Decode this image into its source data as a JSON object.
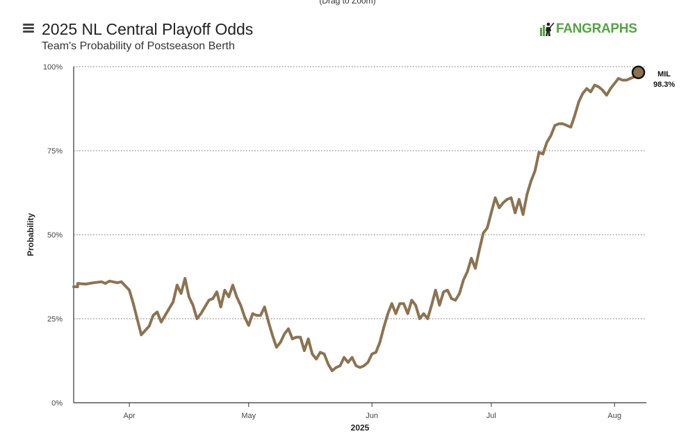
{
  "zoom_hint": "(Drag to Zoom)",
  "header": {
    "title": "2025 NL Central Playoff Odds",
    "subtitle": "Team's Probability of Postseason Berth",
    "logo_text": "FANGRAPHS"
  },
  "colors": {
    "series": "#8c7350",
    "marker_fill": "#8c7350",
    "gridline": "#666666",
    "logo": "#51a540"
  },
  "chart_data": {
    "type": "line",
    "title": "2025 NL Central Playoff Odds",
    "subtitle": "Team's Probability of Postseason Berth",
    "xlabel": "2025",
    "ylabel": "Probability",
    "ylim": [
      0,
      100
    ],
    "yticks": [
      0,
      25,
      50,
      75,
      100
    ],
    "ytick_labels": [
      "0%",
      "25%",
      "50%",
      "75%",
      "100%"
    ],
    "xlim": [
      "2025-03-18",
      "2025-08-09"
    ],
    "xticks": [
      "2025-04-01",
      "2025-05-01",
      "2025-06-01",
      "2025-07-01",
      "2025-08-01"
    ],
    "xtick_labels": [
      "Apr",
      "May",
      "Jun",
      "Jul",
      "Aug"
    ],
    "grid": "horizontal dotted",
    "series": [
      {
        "name": "MIL",
        "end_label": "98.3%",
        "points": [
          [
            "2025-03-18",
            34.5
          ],
          [
            "2025-03-19",
            34.5
          ],
          [
            "2025-03-19",
            35.5
          ],
          [
            "2025-03-21",
            35.3
          ],
          [
            "2025-03-23",
            35.7
          ],
          [
            "2025-03-25",
            36.0
          ],
          [
            "2025-03-26",
            35.5
          ],
          [
            "2025-03-27",
            36.2
          ],
          [
            "2025-03-29",
            35.7
          ],
          [
            "2025-03-30",
            36.0
          ],
          [
            "2025-04-01",
            33.5
          ],
          [
            "2025-04-02",
            29.5
          ],
          [
            "2025-04-04",
            20.2
          ],
          [
            "2025-04-05",
            21.5
          ],
          [
            "2025-04-06",
            22.8
          ],
          [
            "2025-04-07",
            26.0
          ],
          [
            "2025-04-08",
            27.0
          ],
          [
            "2025-04-09",
            24.0
          ],
          [
            "2025-04-10",
            26.0
          ],
          [
            "2025-04-12",
            30.0
          ],
          [
            "2025-04-13",
            35.0
          ],
          [
            "2025-04-14",
            32.5
          ],
          [
            "2025-04-15",
            37.0
          ],
          [
            "2025-04-16",
            31.5
          ],
          [
            "2025-04-17",
            29.0
          ],
          [
            "2025-04-18",
            25.0
          ],
          [
            "2025-04-19",
            26.5
          ],
          [
            "2025-04-21",
            30.5
          ],
          [
            "2025-04-22",
            31.0
          ],
          [
            "2025-04-23",
            33.0
          ],
          [
            "2025-04-24",
            28.5
          ],
          [
            "2025-04-25",
            33.5
          ],
          [
            "2025-04-26",
            31.5
          ],
          [
            "2025-04-27",
            35.0
          ],
          [
            "2025-04-28",
            31.5
          ],
          [
            "2025-04-29",
            29.0
          ],
          [
            "2025-04-30",
            25.5
          ],
          [
            "2025-05-01",
            23.0
          ],
          [
            "2025-05-02",
            26.5
          ],
          [
            "2025-05-03",
            26.0
          ],
          [
            "2025-05-04",
            26.0
          ],
          [
            "2025-05-05",
            28.5
          ],
          [
            "2025-05-06",
            24.0
          ],
          [
            "2025-05-07",
            20.0
          ],
          [
            "2025-05-08",
            16.5
          ],
          [
            "2025-05-09",
            18.0
          ],
          [
            "2025-05-10",
            20.5
          ],
          [
            "2025-05-11",
            22.0
          ],
          [
            "2025-05-12",
            19.0
          ],
          [
            "2025-05-13",
            19.5
          ],
          [
            "2025-05-14",
            19.5
          ],
          [
            "2025-05-15",
            15.5
          ],
          [
            "2025-05-16",
            19.0
          ],
          [
            "2025-05-17",
            14.5
          ],
          [
            "2025-05-18",
            13.0
          ],
          [
            "2025-05-19",
            15.0
          ],
          [
            "2025-05-20",
            14.5
          ],
          [
            "2025-05-21",
            11.5
          ],
          [
            "2025-05-22",
            9.5
          ],
          [
            "2025-05-23",
            10.5
          ],
          [
            "2025-05-24",
            11.0
          ],
          [
            "2025-05-25",
            13.5
          ],
          [
            "2025-05-26",
            12.0
          ],
          [
            "2025-05-27",
            13.5
          ],
          [
            "2025-05-28",
            11.0
          ],
          [
            "2025-05-29",
            10.5
          ],
          [
            "2025-05-30",
            11.0
          ],
          [
            "2025-05-31",
            12.0
          ],
          [
            "2025-06-01",
            14.5
          ],
          [
            "2025-06-02",
            15.0
          ],
          [
            "2025-06-03",
            18.0
          ],
          [
            "2025-06-04",
            22.5
          ],
          [
            "2025-06-05",
            26.5
          ],
          [
            "2025-06-06",
            29.5
          ],
          [
            "2025-06-07",
            26.5
          ],
          [
            "2025-06-08",
            29.5
          ],
          [
            "2025-06-09",
            29.5
          ],
          [
            "2025-06-10",
            26.5
          ],
          [
            "2025-06-11",
            30.5
          ],
          [
            "2025-06-12",
            29.0
          ],
          [
            "2025-06-13",
            25.0
          ],
          [
            "2025-06-14",
            26.5
          ],
          [
            "2025-06-15",
            25.0
          ],
          [
            "2025-06-16",
            29.0
          ],
          [
            "2025-06-17",
            33.5
          ],
          [
            "2025-06-18",
            29.0
          ],
          [
            "2025-06-19",
            33.0
          ],
          [
            "2025-06-20",
            33.5
          ],
          [
            "2025-06-21",
            31.0
          ],
          [
            "2025-06-22",
            30.5
          ],
          [
            "2025-06-23",
            32.5
          ],
          [
            "2025-06-24",
            36.5
          ],
          [
            "2025-06-25",
            39.0
          ],
          [
            "2025-06-26",
            43.0
          ],
          [
            "2025-06-27",
            40.0
          ],
          [
            "2025-06-28",
            45.5
          ],
          [
            "2025-06-29",
            50.5
          ],
          [
            "2025-06-30",
            52.0
          ],
          [
            "2025-07-01",
            56.5
          ],
          [
            "2025-07-02",
            61.0
          ],
          [
            "2025-07-03",
            58.0
          ],
          [
            "2025-07-04",
            59.5
          ],
          [
            "2025-07-05",
            60.5
          ],
          [
            "2025-07-06",
            61.0
          ],
          [
            "2025-07-07",
            56.5
          ],
          [
            "2025-07-08",
            60.5
          ],
          [
            "2025-07-09",
            56.0
          ],
          [
            "2025-07-10",
            62.0
          ],
          [
            "2025-07-11",
            66.0
          ],
          [
            "2025-07-12",
            69.0
          ],
          [
            "2025-07-13",
            74.5
          ],
          [
            "2025-07-14",
            74.0
          ],
          [
            "2025-07-15",
            77.5
          ],
          [
            "2025-07-16",
            79.5
          ],
          [
            "2025-07-17",
            82.5
          ],
          [
            "2025-07-18",
            83.0
          ],
          [
            "2025-07-19",
            83.0
          ],
          [
            "2025-07-20",
            82.5
          ],
          [
            "2025-07-21",
            82.0
          ],
          [
            "2025-07-22",
            85.5
          ],
          [
            "2025-07-23",
            89.5
          ],
          [
            "2025-07-24",
            92.0
          ],
          [
            "2025-07-25",
            93.5
          ],
          [
            "2025-07-26",
            92.5
          ],
          [
            "2025-07-27",
            94.5
          ],
          [
            "2025-07-28",
            94.0
          ],
          [
            "2025-07-29",
            93.0
          ],
          [
            "2025-07-30",
            91.5
          ],
          [
            "2025-07-31",
            93.5
          ],
          [
            "2025-08-01",
            95.0
          ],
          [
            "2025-08-02",
            96.5
          ],
          [
            "2025-08-03",
            96.0
          ],
          [
            "2025-08-04",
            96.0
          ],
          [
            "2025-08-05",
            96.5
          ],
          [
            "2025-08-06",
            97.0
          ],
          [
            "2025-08-07",
            98.3
          ]
        ]
      }
    ]
  }
}
